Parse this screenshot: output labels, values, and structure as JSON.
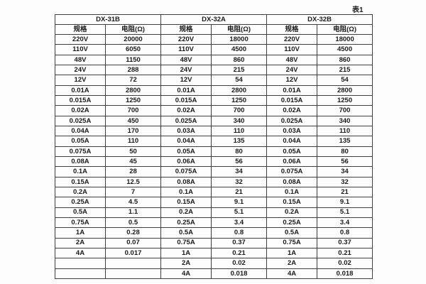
{
  "page": {
    "caption": "表1"
  },
  "table": {
    "groups": [
      {
        "name": "DX-31B"
      },
      {
        "name": "DX-32A"
      },
      {
        "name": "DX-32B"
      }
    ],
    "column_headers": {
      "spec": "规格",
      "resistance": "电阻(Ω)"
    },
    "rows": [
      [
        "220V",
        "20000",
        "220V",
        "18000",
        "220V",
        "18000"
      ],
      [
        "110V",
        "6050",
        "110V",
        "4500",
        "110V",
        "4500"
      ],
      [
        "48V",
        "1150",
        "48V",
        "860",
        "48V",
        "860"
      ],
      [
        "24V",
        "288",
        "24V",
        "215",
        "24V",
        "215"
      ],
      [
        "12V",
        "72",
        "12V",
        "54",
        "12V",
        "54"
      ],
      [
        "0.01A",
        "2800",
        "0.01A",
        "2800",
        "0.01A",
        "2800"
      ],
      [
        "0.015A",
        "1250",
        "0.015A",
        "1250",
        "0.015A",
        "1250"
      ],
      [
        "0.02A",
        "700",
        "0.02A",
        "700",
        "0.02A",
        "700"
      ],
      [
        "0.025A",
        "450",
        "0.025A",
        "340",
        "0.025A",
        "340"
      ],
      [
        "0.04A",
        "170",
        "0.03A",
        "110",
        "0.03A",
        "110"
      ],
      [
        "0.05A",
        "110",
        "0.04A",
        "135",
        "0.04A",
        "135"
      ],
      [
        "0.075A",
        "50",
        "0.05A",
        "80",
        "0.05A",
        "80"
      ],
      [
        "0.08A",
        "45",
        "0.06A",
        "56",
        "0.06A",
        "56"
      ],
      [
        "0.1A",
        "28",
        "0.075A",
        "34",
        "0.075A",
        "34"
      ],
      [
        "0.15A",
        "12.5",
        "0.08A",
        "32",
        "0.08A",
        "32"
      ],
      [
        "0.2A",
        "7",
        "0.1A",
        "21",
        "0.1A",
        "21"
      ],
      [
        "0.25A",
        "4.5",
        "0.15A",
        "9.1",
        "0.15A",
        "9.1"
      ],
      [
        "0.5A",
        "1.1",
        "0.2A",
        "5.1",
        "0.2A",
        "5.1"
      ],
      [
        "0.75A",
        "0.5",
        "0.25A",
        "3.4",
        "0.25A",
        "3.4"
      ],
      [
        "1A",
        "0.28",
        "0.5A",
        "0.8",
        "0.5A",
        "0.8"
      ],
      [
        "2A",
        "0.07",
        "0.75A",
        "0.37",
        "0.75A",
        "0.37"
      ],
      [
        "4A",
        "0.017",
        "1A",
        "0.21",
        "1A",
        "0.21"
      ],
      [
        "",
        "",
        "2A",
        "0.02",
        "2A",
        "0.02"
      ],
      [
        "",
        "",
        "4A",
        "0.018",
        "4A",
        "0.018"
      ]
    ],
    "colors": {
      "border": "#3f3f3f",
      "text": "#1a1a1a",
      "background": "#fdfdfd"
    }
  }
}
